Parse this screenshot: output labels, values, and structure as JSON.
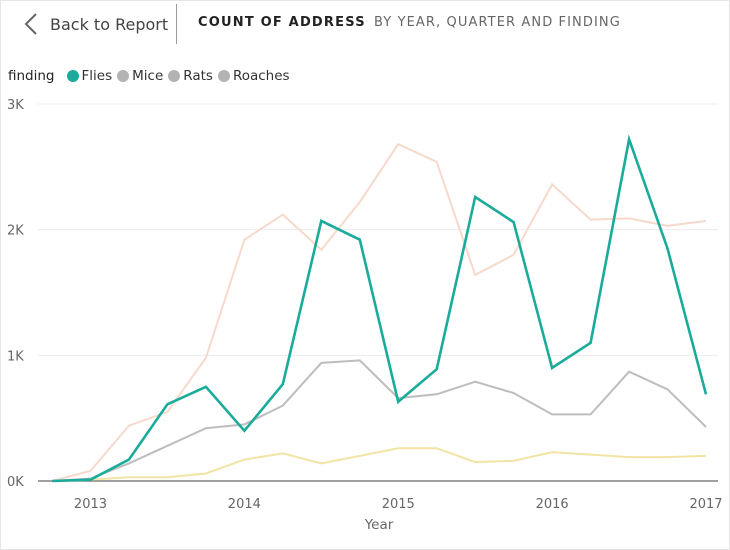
{
  "header": {
    "back_label": "Back to Report",
    "title": "COUNT OF ADDRESS",
    "subtitle": "BY YEAR, QUARTER AND FINDING"
  },
  "legend": {
    "title": "finding",
    "items": [
      {
        "label": "Flies",
        "color": "#1aab9b"
      },
      {
        "label": "Mice",
        "color": "#b3b3b3"
      },
      {
        "label": "Rats",
        "color": "#b3b3b3"
      },
      {
        "label": "Roaches",
        "color": "#b3b3b3"
      }
    ]
  },
  "chart_data": {
    "type": "line",
    "title": "COUNT OF ADDRESS",
    "subtitle": "BY YEAR, QUARTER AND FINDING",
    "xlabel": "Year",
    "ylabel": "",
    "x": [
      "2012 Q4",
      "2013 Q1",
      "2013 Q2",
      "2013 Q3",
      "2013 Q4",
      "2014 Q1",
      "2014 Q2",
      "2014 Q3",
      "2014 Q4",
      "2015 Q1",
      "2015 Q2",
      "2015 Q3",
      "2015 Q4",
      "2016 Q1",
      "2016 Q2",
      "2016 Q3",
      "2016 Q4",
      "2017 Q1"
    ],
    "x_ticks": [
      {
        "label": "2013",
        "index": 1
      },
      {
        "label": "2014",
        "index": 5
      },
      {
        "label": "2015",
        "index": 9
      },
      {
        "label": "2016",
        "index": 13
      },
      {
        "label": "2017",
        "index": 17
      }
    ],
    "y_ticks": [
      {
        "label": "0K",
        "value": 0
      },
      {
        "label": "1K",
        "value": 1000
      },
      {
        "label": "2K",
        "value": 2000
      },
      {
        "label": "3K",
        "value": 3000
      }
    ],
    "ylim": [
      0,
      3000
    ],
    "grid": true,
    "legend_position": "top-left",
    "series": [
      {
        "name": "Rats",
        "color": "#f7d9cc",
        "width": 2,
        "values": [
          0,
          80,
          440,
          550,
          980,
          1920,
          2120,
          1840,
          2220,
          2680,
          2540,
          1640,
          1800,
          2360,
          2080,
          2090,
          2030,
          2070
        ]
      },
      {
        "name": "Roaches",
        "color": "#f2e4a4",
        "width": 2,
        "values": [
          0,
          10,
          30,
          30,
          60,
          170,
          220,
          140,
          200,
          260,
          260,
          150,
          160,
          230,
          210,
          190,
          190,
          200
        ]
      },
      {
        "name": "Mice",
        "color": "#bdbdbd",
        "width": 2,
        "values": [
          0,
          20,
          140,
          280,
          420,
          450,
          600,
          940,
          960,
          660,
          690,
          790,
          700,
          530,
          530,
          870,
          730,
          430
        ]
      },
      {
        "name": "Flies",
        "color": "#1aab9b",
        "width": 2.6,
        "values": [
          0,
          10,
          170,
          610,
          750,
          400,
          770,
          2070,
          1920,
          630,
          890,
          2260,
          2060,
          900,
          1100,
          2720,
          1850,
          690
        ]
      }
    ]
  }
}
